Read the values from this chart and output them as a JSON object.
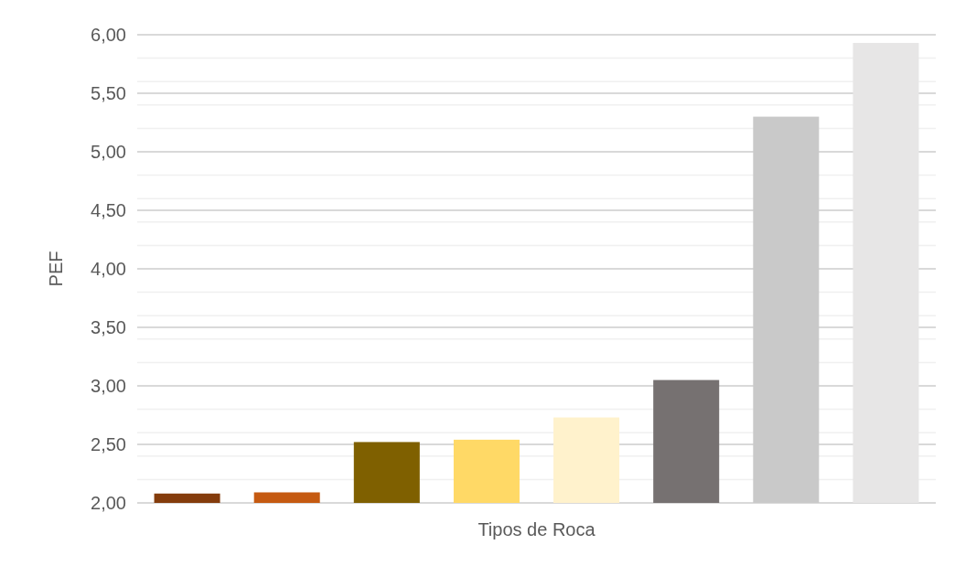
{
  "chart_data": {
    "type": "bar",
    "xlabel": "Tipos de Roca",
    "ylabel": "PEF",
    "categories": [
      null,
      null,
      null,
      null,
      null,
      null,
      null,
      null
    ],
    "values": [
      2.08,
      2.09,
      2.52,
      2.54,
      2.73,
      3.05,
      5.3,
      5.93
    ],
    "colors": [
      "#843c0c",
      "#c55a11",
      "#7f6000",
      "#ffd966",
      "#fff2cc",
      "#767171",
      "#c9c9c9",
      "#e7e6e6"
    ],
    "ylim": [
      2,
      6
    ],
    "yticks": [
      {
        "value": 2,
        "label": "2,00"
      },
      {
        "value": 2.2,
        "label": null
      },
      {
        "value": 2.4,
        "label": null
      },
      {
        "value": 2.5,
        "label": "2,50"
      },
      {
        "value": 2.6,
        "label": null
      },
      {
        "value": 2.8,
        "label": null
      },
      {
        "value": 3,
        "label": "3,00"
      },
      {
        "value": 3.2,
        "label": null
      },
      {
        "value": 3.4,
        "label": null
      },
      {
        "value": 3.5,
        "label": "3,50"
      },
      {
        "value": 3.6,
        "label": null
      },
      {
        "value": 3.8,
        "label": null
      },
      {
        "value": 4,
        "label": "4,00"
      },
      {
        "value": 4.2,
        "label": null
      },
      {
        "value": 4.4,
        "label": null
      },
      {
        "value": 4.5,
        "label": "4,50"
      },
      {
        "value": 4.6,
        "label": null
      },
      {
        "value": 4.8,
        "label": null
      },
      {
        "value": 5,
        "label": "5,00"
      },
      {
        "value": 5.2,
        "label": null
      },
      {
        "value": 5.4,
        "label": null
      },
      {
        "value": 5.5,
        "label": "5,50"
      },
      {
        "value": 5.6,
        "label": null
      },
      {
        "value": 5.8,
        "label": null
      },
      {
        "value": 6,
        "label": "6,00"
      }
    ],
    "grid": "y"
  }
}
